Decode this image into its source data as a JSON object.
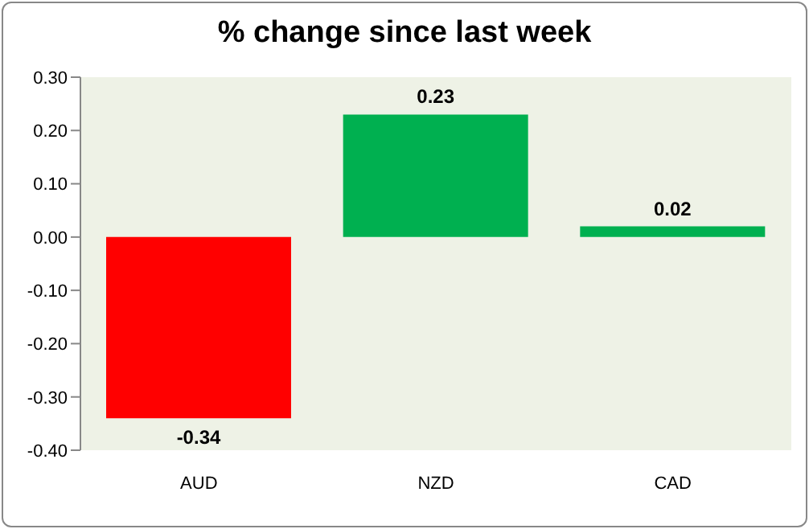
{
  "chart_data": {
    "type": "bar",
    "title": "% change since last week",
    "categories": [
      "AUD",
      "NZD",
      "CAD"
    ],
    "values": [
      -0.34,
      0.23,
      0.02
    ],
    "colors": [
      "#ff0000",
      "#00b050",
      "#00b050"
    ],
    "ylim": [
      -0.4,
      0.3
    ],
    "yticks": [
      {
        "value": -0.4,
        "label": "-0.40"
      },
      {
        "value": -0.3,
        "label": "-0.30"
      },
      {
        "value": -0.2,
        "label": "-0.20"
      },
      {
        "value": -0.1,
        "label": "-0.10"
      },
      {
        "value": 0,
        "label": "0.00"
      },
      {
        "value": 0.1,
        "label": "0.10"
      },
      {
        "value": 0.2,
        "label": "0.20"
      },
      {
        "value": 0.3,
        "label": "0.30"
      }
    ],
    "data_labels": true,
    "grid": false
  }
}
